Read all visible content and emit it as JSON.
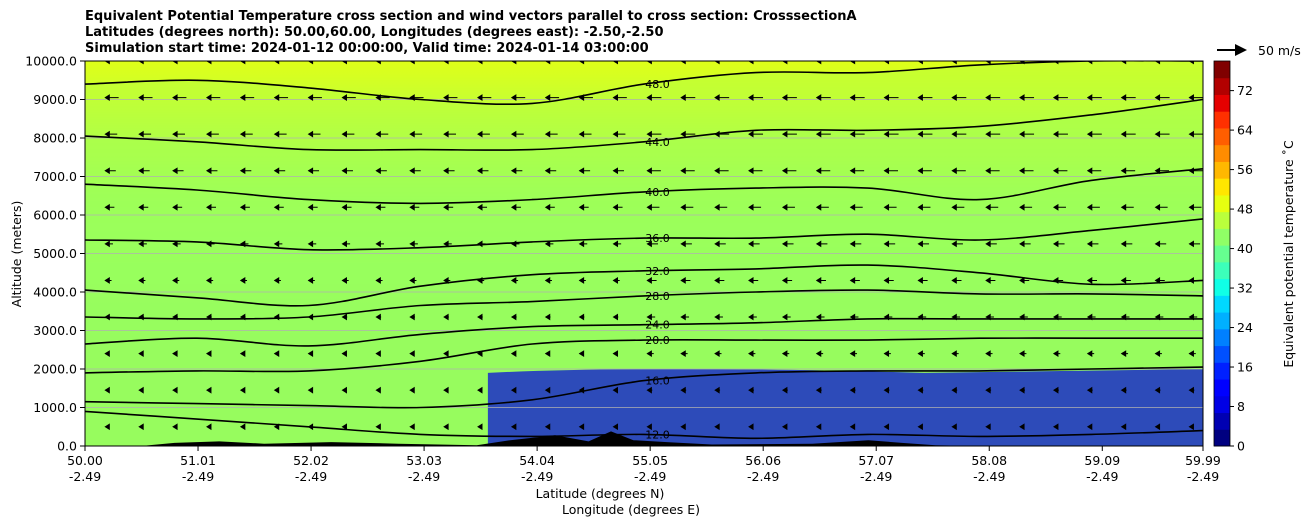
{
  "titles": [
    "Equivalent Potential Temperature cross section and wind vectors parallel to cross section: CrosssectionA",
    "Latitudes (degrees north): 50.00,60.00, Longitudes (degrees east): -2.50,-2.50",
    "Simulation start time: 2024-01-12 00:00:00, Valid time: 2024-01-14 03:00:00"
  ],
  "chart_data": {
    "type": "heatmap",
    "title": "Equivalent Potential Temperature cross section and wind vectors parallel to cross section: CrosssectionA",
    "xlabel": "Latitude (degrees N)",
    "xlabel2": "Longitude (degrees E)",
    "ylabel": "Altitude (meters)",
    "xlim": [
      50.0,
      59.99
    ],
    "ylim": [
      0,
      10000
    ],
    "x_ticks": [
      50.0,
      51.01,
      52.02,
      53.03,
      54.04,
      55.05,
      56.06,
      57.07,
      58.08,
      59.09,
      59.99
    ],
    "x_tick_labels": [
      "50.00",
      "51.01",
      "52.02",
      "53.03",
      "54.04",
      "55.05",
      "56.06",
      "57.07",
      "58.08",
      "59.09",
      "59.99"
    ],
    "x_tick_labels2": [
      "-2.49",
      "-2.49",
      "-2.49",
      "-2.49",
      "-2.49",
      "-2.49",
      "-2.49",
      "-2.49",
      "-2.49",
      "-2.49",
      "-2.49"
    ],
    "y_ticks": [
      0,
      1000,
      2000,
      3000,
      4000,
      5000,
      6000,
      7000,
      8000,
      9000,
      10000
    ],
    "y_tick_labels": [
      "0.0",
      "1000.0",
      "2000.0",
      "3000.0",
      "4000.0",
      "5000.0",
      "6000.0",
      "7000.0",
      "8000.0",
      "9000.0",
      "10000.0"
    ],
    "grid": "horizontal",
    "colorbar": {
      "label": "Equivalent potential temperature ˚C",
      "range": [
        0,
        78
      ],
      "ticks": [
        0,
        8,
        16,
        24,
        32,
        40,
        48,
        56,
        64,
        72
      ],
      "tick_labels": [
        "0",
        "8",
        "16",
        "24",
        "32",
        "40",
        "48",
        "56",
        "64",
        "72"
      ],
      "colors": [
        "#000080",
        "#0000b2",
        "#0000e5",
        "#0000ff",
        "#0020ff",
        "#0050ff",
        "#0080ff",
        "#00b0ff",
        "#00d8ff",
        "#10ffe6",
        "#3cffba",
        "#66ff90",
        "#90ff66",
        "#baff3c",
        "#e6ff10",
        "#ffe600",
        "#ffb800",
        "#ff8c00",
        "#ff5e00",
        "#ff3000",
        "#e50000",
        "#b20000",
        "#800000"
      ]
    },
    "contours": [
      {
        "label": "12.0",
        "altitude": [
          900,
          700,
          500,
          300,
          250,
          300,
          200,
          300,
          250,
          300,
          400
        ]
      },
      {
        "label": "16.0",
        "altitude": [
          1150,
          1100,
          1050,
          1000,
          1200,
          1700,
          1900,
          1950,
          1950,
          2000,
          2050
        ]
      },
      {
        "label": "20.0",
        "altitude": [
          1900,
          1950,
          1950,
          2200,
          2650,
          2750,
          2750,
          2750,
          2800,
          2800,
          2800
        ]
      },
      {
        "label": "24.0",
        "altitude": [
          2650,
          2800,
          2600,
          2900,
          3100,
          3150,
          3200,
          3300,
          3300,
          3300,
          3300
        ]
      },
      {
        "label": "28.0",
        "altitude": [
          3350,
          3300,
          3350,
          3650,
          3750,
          3900,
          4000,
          4050,
          3950,
          3950,
          3900
        ]
      },
      {
        "label": "32.0",
        "altitude": [
          4050,
          3850,
          3650,
          4150,
          4450,
          4550,
          4600,
          4700,
          4500,
          4200,
          4300
        ]
      },
      {
        "label": "36.0",
        "altitude": [
          5350,
          5300,
          5100,
          5150,
          5300,
          5400,
          5400,
          5500,
          5350,
          5600,
          5900
        ]
      },
      {
        "label": "40.0",
        "altitude": [
          6800,
          6650,
          6400,
          6300,
          6400,
          6600,
          6700,
          6700,
          6400,
          6900,
          7200
        ]
      },
      {
        "label": "44.0",
        "altitude": [
          8050,
          7900,
          7700,
          7700,
          7700,
          7900,
          8200,
          8200,
          8300,
          8600,
          9000
        ]
      },
      {
        "label": "48.0",
        "altitude": [
          9400,
          9500,
          9300,
          9000,
          8900,
          9400,
          9700,
          9700,
          9900,
          10000,
          10000
        ]
      }
    ],
    "wind_reference": {
      "label": "50 m/s",
      "speed": 50
    }
  }
}
